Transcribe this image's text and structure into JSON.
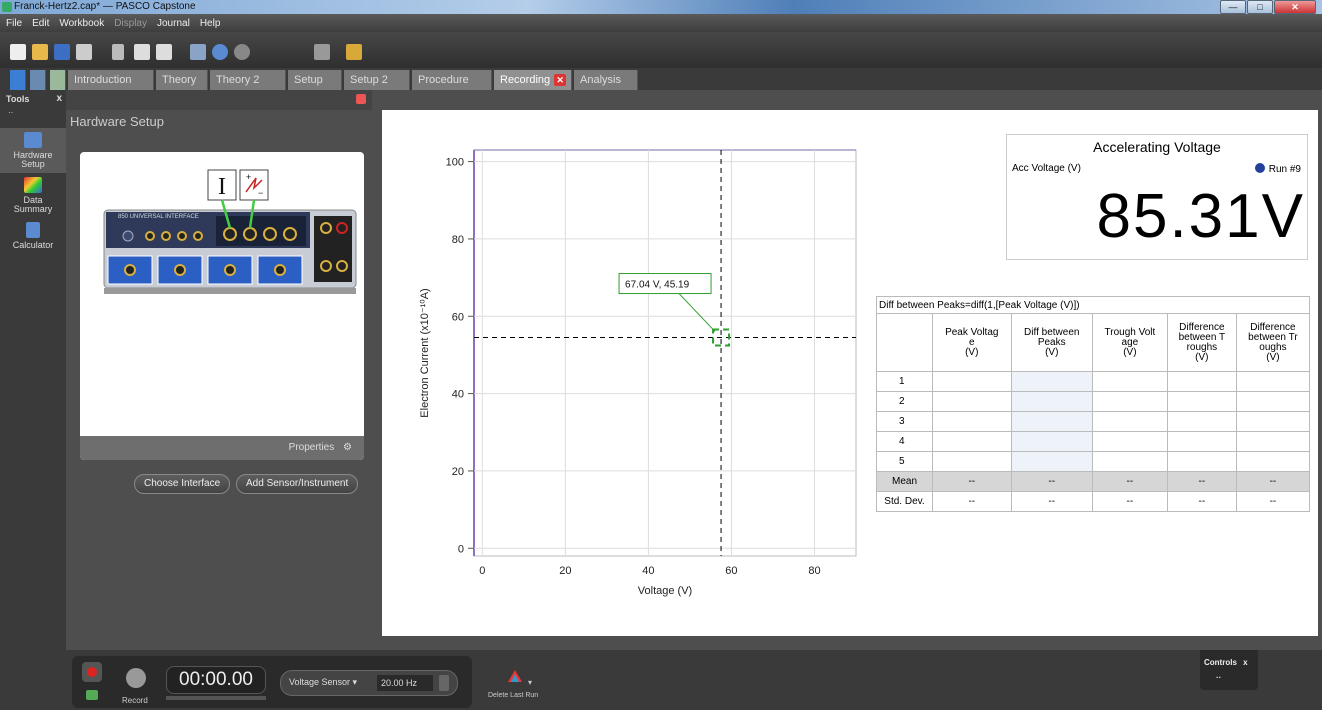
{
  "window": {
    "title": "Franck-Hertz2.cap* — PASCO Capstone",
    "min_label": "—",
    "max_label": "□",
    "close_label": "✕"
  },
  "menu": {
    "items": [
      "File",
      "Edit",
      "Workbook",
      "Display",
      "Journal",
      "Help"
    ]
  },
  "tabs": [
    {
      "label": "Introduction"
    },
    {
      "label": "Theory"
    },
    {
      "label": "Theory 2"
    },
    {
      "label": "Setup"
    },
    {
      "label": "Setup 2"
    },
    {
      "label": "Procedure"
    },
    {
      "label": "Recording"
    },
    {
      "label": "Analysis"
    }
  ],
  "active_tab_close": "✕",
  "tools": {
    "title": "Tools",
    "close": "x",
    "dots": "··",
    "items": [
      {
        "label": "Hardware Setup",
        "icon": "hardware-icon"
      },
      {
        "label": "Data Summary",
        "icon": "data-summary-icon"
      },
      {
        "label": "Calculator",
        "icon": "calculator-icon"
      }
    ]
  },
  "hardware": {
    "title": "Hardware Setup",
    "properties_label": "Properties",
    "choose_interface": "Choose Interface",
    "add_sensor": "Add Sensor/Instrument",
    "device_label": "850 UNIVERSAL INTERFACE",
    "current_symbol": "I"
  },
  "graph": {
    "ylabel": "Electron Current (x10⁻¹⁰A)",
    "xlabel": "Voltage (V)",
    "coord_label": "67.04 V, 45.19"
  },
  "digits": {
    "title": "Accelerating Voltage",
    "label": "Acc Voltage (V)",
    "run": "Run #9",
    "value": "85.31V"
  },
  "table": {
    "caption": "Diff between Peaks=diff(1,[Peak Voltage (V)])",
    "columns": [
      [
        "Peak Voltag",
        "e",
        "(V)"
      ],
      [
        "Diff between",
        "Peaks",
        "(V)"
      ],
      [
        "Trough Volt",
        "age",
        "(V)"
      ],
      [
        "Difference",
        "between T",
        "roughs",
        "(V)"
      ],
      [
        "Difference",
        "between Tr",
        "oughs",
        "(V)"
      ]
    ],
    "rows": [
      "1",
      "2",
      "3",
      "4",
      "5"
    ],
    "mean_label": "Mean",
    "std_label": "Std. Dev.",
    "empty": "--"
  },
  "bottom": {
    "record_label": "Record",
    "timer": "00:00.00",
    "sensor": "Voltage Sensor",
    "rate": "20.00 Hz",
    "delete_label": "Delete Last Run",
    "controls_label": "Controls",
    "controls_close": "x",
    "controls_dots": "··"
  },
  "colors": {
    "run_dot": "#23419b",
    "cursor_box": "#2e9e2e",
    "plot_axis": "#9070c0"
  },
  "chart_data": {
    "type": "scatter",
    "title": "",
    "xlabel": "Voltage (V)",
    "ylabel": "Electron Current (x10⁻¹⁰A)",
    "xlim": [
      -2,
      90
    ],
    "ylim": [
      -2,
      103
    ],
    "x_ticks": [
      0,
      20,
      40,
      60,
      80
    ],
    "y_ticks": [
      0,
      20,
      40,
      60,
      80,
      100
    ],
    "grid": true,
    "cursor": {
      "x": 57.5,
      "y": 54.5,
      "label": "67.04 V, 45.19"
    },
    "series": []
  }
}
